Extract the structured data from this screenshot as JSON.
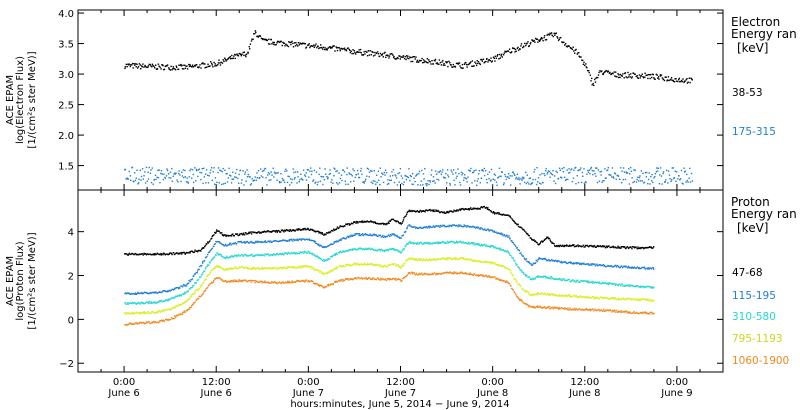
{
  "chart_data": [
    {
      "type": "scatter",
      "panel": "electron",
      "ylabel": [
        "ACE EPAM",
        "log(Electron Flux)",
        "[1/(cm²s ster MeV)]"
      ],
      "ylim": [
        1.1,
        4.05
      ],
      "yticks": [
        "1.5",
        "2.0",
        "2.5",
        "3.0",
        "3.5",
        "4.0"
      ],
      "ytick_values": [
        1.5,
        2.0,
        2.5,
        3.0,
        3.5,
        4.0
      ],
      "legend_title": [
        "Electron",
        "Energy ran",
        "[keV]"
      ],
      "series": [
        {
          "name": "38-53",
          "color": "#000000",
          "points": [
            [
              0,
              3.15
            ],
            [
              4,
              3.13
            ],
            [
              8,
              3.12
            ],
            [
              12,
              3.18
            ],
            [
              14,
              3.28
            ],
            [
              16,
              3.35
            ],
            [
              17,
              3.7
            ],
            [
              18,
              3.55
            ],
            [
              22,
              3.5
            ],
            [
              26,
              3.45
            ],
            [
              30,
              3.38
            ],
            [
              34,
              3.32
            ],
            [
              38,
              3.25
            ],
            [
              40,
              3.22
            ],
            [
              42,
              3.18
            ],
            [
              44,
              3.15
            ],
            [
              46,
              3.2
            ],
            [
              48,
              3.25
            ],
            [
              50,
              3.38
            ],
            [
              52,
              3.48
            ],
            [
              54,
              3.58
            ],
            [
              56,
              3.66
            ],
            [
              57,
              3.55
            ],
            [
              59,
              3.35
            ],
            [
              60,
              3.15
            ],
            [
              61,
              2.85
            ],
            [
              62,
              3.05
            ],
            [
              64,
              3.0
            ],
            [
              68,
              2.98
            ],
            [
              70,
              2.95
            ],
            [
              72,
              2.92
            ],
            [
              74,
              2.9
            ]
          ]
        },
        {
          "name": "175-315",
          "color": "#1f7fd6",
          "points": [
            [
              0,
              1.35
            ],
            [
              10,
              1.34
            ],
            [
              20,
              1.33
            ],
            [
              30,
              1.34
            ],
            [
              40,
              1.32
            ],
            [
              50,
              1.33
            ],
            [
              60,
              1.35
            ],
            [
              70,
              1.34
            ],
            [
              74,
              1.35
            ]
          ]
        }
      ]
    },
    {
      "type": "scatter",
      "panel": "proton",
      "ylabel": [
        "ACE EPAM",
        "log(Proton Flux)",
        "[1/(cm²s ster MeV)]"
      ],
      "ylim": [
        -2.4,
        5.9
      ],
      "yticks": [
        "−2",
        "0",
        "2",
        "4"
      ],
      "ytick_values": [
        -2,
        0,
        2,
        4
      ],
      "legend_title": [
        "Proton",
        "Energy ran",
        "[keV]"
      ],
      "series": [
        {
          "name": "47-68",
          "color": "#000000",
          "points": [
            [
              0,
              3.0
            ],
            [
              4,
              3.0
            ],
            [
              8,
              3.05
            ],
            [
              10,
              3.2
            ],
            [
              11,
              3.6
            ],
            [
              12,
              4.1
            ],
            [
              13,
              3.85
            ],
            [
              15,
              3.9
            ],
            [
              17,
              4.0
            ],
            [
              20,
              4.05
            ],
            [
              24,
              4.15
            ],
            [
              26,
              3.9
            ],
            [
              28,
              4.25
            ],
            [
              30,
              4.45
            ],
            [
              32,
              4.5
            ],
            [
              34,
              4.35
            ],
            [
              35,
              4.6
            ],
            [
              36,
              4.4
            ],
            [
              37,
              5.0
            ],
            [
              38,
              4.95
            ],
            [
              40,
              5.0
            ],
            [
              42,
              4.9
            ],
            [
              44,
              5.05
            ],
            [
              46,
              5.1
            ],
            [
              47,
              5.15
            ],
            [
              48,
              4.9
            ],
            [
              50,
              4.75
            ],
            [
              51,
              4.4
            ],
            [
              52,
              4.1
            ],
            [
              53,
              3.7
            ],
            [
              54,
              3.45
            ],
            [
              55,
              3.8
            ],
            [
              56,
              3.4
            ],
            [
              58,
              3.4
            ],
            [
              62,
              3.35
            ],
            [
              66,
              3.3
            ],
            [
              69,
              3.3
            ]
          ]
        },
        {
          "name": "115-195",
          "color": "#1f7fd6",
          "points": [
            [
              0,
              1.2
            ],
            [
              4,
              1.25
            ],
            [
              6,
              1.35
            ],
            [
              8,
              1.6
            ],
            [
              9,
              2.0
            ],
            [
              10,
              2.5
            ],
            [
              11,
              3.1
            ],
            [
              12,
              3.6
            ],
            [
              13,
              3.4
            ],
            [
              15,
              3.55
            ],
            [
              17,
              3.55
            ],
            [
              20,
              3.6
            ],
            [
              24,
              3.7
            ],
            [
              26,
              3.3
            ],
            [
              28,
              3.65
            ],
            [
              30,
              3.9
            ],
            [
              32,
              3.9
            ],
            [
              34,
              3.8
            ],
            [
              35,
              3.9
            ],
            [
              36,
              3.75
            ],
            [
              37,
              4.3
            ],
            [
              38,
              4.2
            ],
            [
              40,
              4.25
            ],
            [
              42,
              4.3
            ],
            [
              44,
              4.3
            ],
            [
              46,
              4.2
            ],
            [
              48,
              4.05
            ],
            [
              50,
              3.8
            ],
            [
              51,
              3.3
            ],
            [
              52,
              2.85
            ],
            [
              53,
              2.5
            ],
            [
              54,
              2.8
            ],
            [
              56,
              2.7
            ],
            [
              58,
              2.6
            ],
            [
              62,
              2.5
            ],
            [
              66,
              2.4
            ],
            [
              69,
              2.35
            ]
          ]
        },
        {
          "name": "310-580",
          "color": "#22d8d0",
          "points": [
            [
              0,
              0.75
            ],
            [
              4,
              0.8
            ],
            [
              6,
              0.95
            ],
            [
              8,
              1.25
            ],
            [
              9,
              1.6
            ],
            [
              10,
              2.05
            ],
            [
              11,
              2.6
            ],
            [
              12,
              3.05
            ],
            [
              13,
              2.85
            ],
            [
              15,
              2.95
            ],
            [
              17,
              2.95
            ],
            [
              20,
              3.0
            ],
            [
              24,
              3.1
            ],
            [
              26,
              2.7
            ],
            [
              28,
              3.1
            ],
            [
              30,
              3.25
            ],
            [
              32,
              3.25
            ],
            [
              34,
              3.15
            ],
            [
              35,
              3.25
            ],
            [
              36,
              3.1
            ],
            [
              37,
              3.55
            ],
            [
              38,
              3.5
            ],
            [
              40,
              3.5
            ],
            [
              42,
              3.55
            ],
            [
              44,
              3.55
            ],
            [
              46,
              3.45
            ],
            [
              48,
              3.35
            ],
            [
              50,
              3.1
            ],
            [
              51,
              2.55
            ],
            [
              52,
              2.1
            ],
            [
              53,
              1.85
            ],
            [
              54,
              2.0
            ],
            [
              56,
              1.9
            ],
            [
              58,
              1.8
            ],
            [
              62,
              1.7
            ],
            [
              66,
              1.55
            ],
            [
              69,
              1.5
            ]
          ]
        },
        {
          "name": "795-1193",
          "color": "#d8ee1e",
          "points": [
            [
              0,
              0.3
            ],
            [
              4,
              0.35
            ],
            [
              6,
              0.5
            ],
            [
              8,
              0.85
            ],
            [
              9,
              1.2
            ],
            [
              10,
              1.6
            ],
            [
              11,
              2.1
            ],
            [
              12,
              2.5
            ],
            [
              13,
              2.3
            ],
            [
              15,
              2.4
            ],
            [
              17,
              2.35
            ],
            [
              20,
              2.35
            ],
            [
              24,
              2.45
            ],
            [
              26,
              2.1
            ],
            [
              28,
              2.45
            ],
            [
              30,
              2.55
            ],
            [
              32,
              2.55
            ],
            [
              34,
              2.45
            ],
            [
              35,
              2.55
            ],
            [
              36,
              2.4
            ],
            [
              37,
              2.8
            ],
            [
              38,
              2.75
            ],
            [
              40,
              2.75
            ],
            [
              42,
              2.8
            ],
            [
              44,
              2.8
            ],
            [
              46,
              2.7
            ],
            [
              48,
              2.6
            ],
            [
              50,
              2.35
            ],
            [
              51,
              1.75
            ],
            [
              52,
              1.35
            ],
            [
              53,
              1.15
            ],
            [
              54,
              1.2
            ],
            [
              56,
              1.15
            ],
            [
              58,
              1.1
            ],
            [
              62,
              1.0
            ],
            [
              66,
              0.95
            ],
            [
              69,
              0.9
            ]
          ]
        },
        {
          "name": "1060-1900",
          "color": "#f08a1e",
          "points": [
            [
              0,
              -0.2
            ],
            [
              4,
              -0.1
            ],
            [
              6,
              0.05
            ],
            [
              8,
              0.4
            ],
            [
              9,
              0.75
            ],
            [
              10,
              1.15
            ],
            [
              11,
              1.6
            ],
            [
              12,
              1.95
            ],
            [
              13,
              1.75
            ],
            [
              15,
              1.8
            ],
            [
              17,
              1.75
            ],
            [
              20,
              1.7
            ],
            [
              24,
              1.8
            ],
            [
              26,
              1.5
            ],
            [
              28,
              1.8
            ],
            [
              30,
              1.9
            ],
            [
              32,
              1.9
            ],
            [
              34,
              1.85
            ],
            [
              35,
              1.9
            ],
            [
              36,
              1.8
            ],
            [
              37,
              2.15
            ],
            [
              38,
              2.1
            ],
            [
              40,
              2.1
            ],
            [
              42,
              2.15
            ],
            [
              44,
              2.15
            ],
            [
              46,
              2.05
            ],
            [
              48,
              1.95
            ],
            [
              50,
              1.7
            ],
            [
              51,
              1.1
            ],
            [
              52,
              0.75
            ],
            [
              53,
              0.6
            ],
            [
              54,
              0.6
            ],
            [
              56,
              0.55
            ],
            [
              58,
              0.5
            ],
            [
              62,
              0.45
            ],
            [
              66,
              0.35
            ],
            [
              69,
              0.3
            ]
          ]
        }
      ]
    }
  ],
  "xaxis": {
    "range_hours": [
      -6,
      78
    ],
    "ticks": [
      {
        "hour": 0,
        "time": "0:00",
        "date": "June 6"
      },
      {
        "hour": 12,
        "time": "12:00",
        "date": "June 6"
      },
      {
        "hour": 24,
        "time": "0:00",
        "date": "June 7"
      },
      {
        "hour": 36,
        "time": "12:00",
        "date": "June 7"
      },
      {
        "hour": 48,
        "time": "0:00",
        "date": "June 8"
      },
      {
        "hour": 60,
        "time": "12:00",
        "date": "June 8"
      },
      {
        "hour": 72,
        "time": "0:00",
        "date": "June 9"
      }
    ],
    "label": "hours:minutes, June  5, 2014 − June  9, 2014"
  }
}
